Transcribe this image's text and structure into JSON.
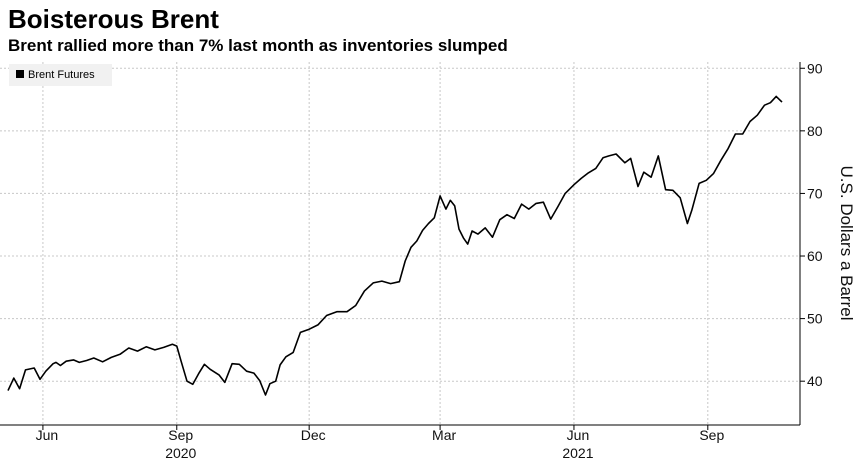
{
  "chart_data": {
    "type": "line",
    "title": "Boisterous Brent",
    "subtitle": "Brent rallied more than 7% last month as inventories slumped",
    "ylabel": "U.S. Dollars a Barrel",
    "ylim": [
      33,
      91
    ],
    "yticks": [
      40,
      50,
      60,
      70,
      80,
      90
    ],
    "grid": true,
    "legend": {
      "position": "top-left",
      "entries": [
        "Brent Futures"
      ]
    },
    "xticks": [
      {
        "label": "Jun",
        "year": "",
        "x": "2020-06-01"
      },
      {
        "label": "Sep",
        "year": "2020",
        "x": "2020-09-01"
      },
      {
        "label": "Dec",
        "year": "",
        "x": "2020-12-01"
      },
      {
        "label": "Mar",
        "year": "",
        "x": "2021-03-01"
      },
      {
        "label": "Jun",
        "year": "2021",
        "x": "2021-06-01"
      },
      {
        "label": "Sep",
        "year": "",
        "x": "2021-09-01"
      }
    ],
    "series": [
      {
        "name": "Brent Futures",
        "color": "#000000",
        "x": [
          "2020-05-08",
          "2020-05-12",
          "2020-05-16",
          "2020-05-20",
          "2020-05-26",
          "2020-05-30",
          "2020-06-03",
          "2020-06-08",
          "2020-06-10",
          "2020-06-13",
          "2020-06-17",
          "2020-06-22",
          "2020-06-26",
          "2020-07-01",
          "2020-07-06",
          "2020-07-12",
          "2020-07-18",
          "2020-07-24",
          "2020-07-30",
          "2020-08-05",
          "2020-08-11",
          "2020-08-17",
          "2020-08-23",
          "2020-08-29",
          "2020-09-01",
          "2020-09-04",
          "2020-09-08",
          "2020-09-12",
          "2020-09-16",
          "2020-09-20",
          "2020-09-24",
          "2020-09-30",
          "2020-10-04",
          "2020-10-09",
          "2020-10-14",
          "2020-10-19",
          "2020-10-24",
          "2020-10-28",
          "2020-11-01",
          "2020-11-04",
          "2020-11-08",
          "2020-11-11",
          "2020-11-15",
          "2020-11-20",
          "2020-11-25",
          "2020-12-01",
          "2020-12-07",
          "2020-12-13",
          "2020-12-20",
          "2020-12-27",
          "2021-01-02",
          "2021-01-08",
          "2021-01-14",
          "2021-01-20",
          "2021-01-26",
          "2021-02-01",
          "2021-02-05",
          "2021-02-09",
          "2021-02-13",
          "2021-02-17",
          "2021-02-21",
          "2021-02-25",
          "2021-03-01",
          "2021-03-05",
          "2021-03-08",
          "2021-03-11",
          "2021-03-14",
          "2021-03-17",
          "2021-03-20",
          "2021-03-23",
          "2021-03-27",
          "2021-04-01",
          "2021-04-06",
          "2021-04-11",
          "2021-04-16",
          "2021-04-21",
          "2021-04-26",
          "2021-05-01",
          "2021-05-06",
          "2021-05-11",
          "2021-05-16",
          "2021-05-21",
          "2021-05-26",
          "2021-06-01",
          "2021-06-06",
          "2021-06-11",
          "2021-06-16",
          "2021-06-21",
          "2021-06-25",
          "2021-06-30",
          "2021-07-06",
          "2021-07-10",
          "2021-07-15",
          "2021-07-19",
          "2021-07-24",
          "2021-07-29",
          "2021-08-03",
          "2021-08-08",
          "2021-08-13",
          "2021-08-18",
          "2021-08-21",
          "2021-08-26",
          "2021-08-31",
          "2021-09-05",
          "2021-09-10",
          "2021-09-15",
          "2021-09-20",
          "2021-09-25",
          "2021-09-30",
          "2021-10-05",
          "2021-10-10",
          "2021-10-14",
          "2021-10-18",
          "2021-10-22"
        ],
        "values": [
          38.5,
          40.5,
          38.8,
          41.8,
          42.1,
          40.3,
          41.6,
          42.8,
          43.0,
          42.5,
          43.2,
          43.4,
          43.0,
          43.3,
          43.7,
          43.1,
          43.8,
          44.3,
          45.3,
          44.8,
          45.5,
          45.0,
          45.4,
          45.9,
          45.6,
          43.2,
          40.0,
          39.5,
          41.2,
          42.7,
          41.9,
          41.0,
          39.8,
          42.8,
          42.7,
          41.6,
          41.3,
          40.1,
          37.8,
          39.6,
          40.0,
          42.6,
          43.9,
          44.6,
          47.8,
          48.3,
          49.0,
          50.5,
          51.1,
          51.1,
          52.1,
          54.4,
          55.7,
          56.0,
          55.6,
          55.9,
          59.2,
          61.4,
          62.4,
          64.1,
          65.2,
          66.1,
          69.6,
          67.5,
          68.9,
          68.0,
          64.3,
          62.9,
          61.9,
          64.0,
          63.5,
          64.5,
          63.0,
          65.8,
          66.6,
          66.0,
          68.3,
          67.5,
          68.4,
          68.6,
          65.9,
          67.9,
          70.0,
          71.4,
          72.4,
          73.3,
          74.0,
          75.7,
          76.0,
          76.3,
          74.9,
          75.6,
          71.1,
          73.4,
          72.6,
          76.0,
          70.6,
          70.5,
          69.3,
          65.2,
          67.3,
          71.6,
          72.1,
          73.2,
          75.3,
          77.2,
          79.5,
          79.5,
          81.5,
          82.5,
          84.1,
          84.5,
          85.5,
          84.6
        ]
      }
    ]
  }
}
